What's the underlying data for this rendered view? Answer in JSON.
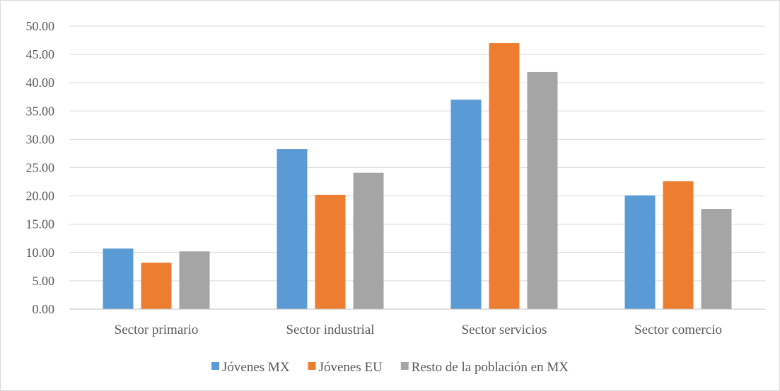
{
  "chart_data": {
    "type": "bar",
    "title": "",
    "xlabel": "",
    "ylabel": "",
    "ylim": [
      0,
      50
    ],
    "ytick_step": 5,
    "ytick_labels": [
      "0.00",
      "5.00",
      "10.00",
      "15.00",
      "20.00",
      "25.00",
      "30.00",
      "35.00",
      "40.00",
      "45.00",
      "50.00"
    ],
    "grid": true,
    "legend_position": "bottom",
    "categories": [
      "Sector primario",
      "Sector industrial",
      "Sector servicios",
      "Sector comercio"
    ],
    "series": [
      {
        "name": "Jóvenes MX",
        "color": "#5b9bd5",
        "values": [
          10.7,
          28.3,
          37.0,
          20.1
        ]
      },
      {
        "name": "Jóvenes EU",
        "color": "#ed7d31",
        "values": [
          8.2,
          20.2,
          47.0,
          22.6
        ]
      },
      {
        "name": "Resto de la población en MX",
        "color": "#a5a5a5",
        "values": [
          10.2,
          24.1,
          41.9,
          17.7
        ]
      }
    ]
  }
}
